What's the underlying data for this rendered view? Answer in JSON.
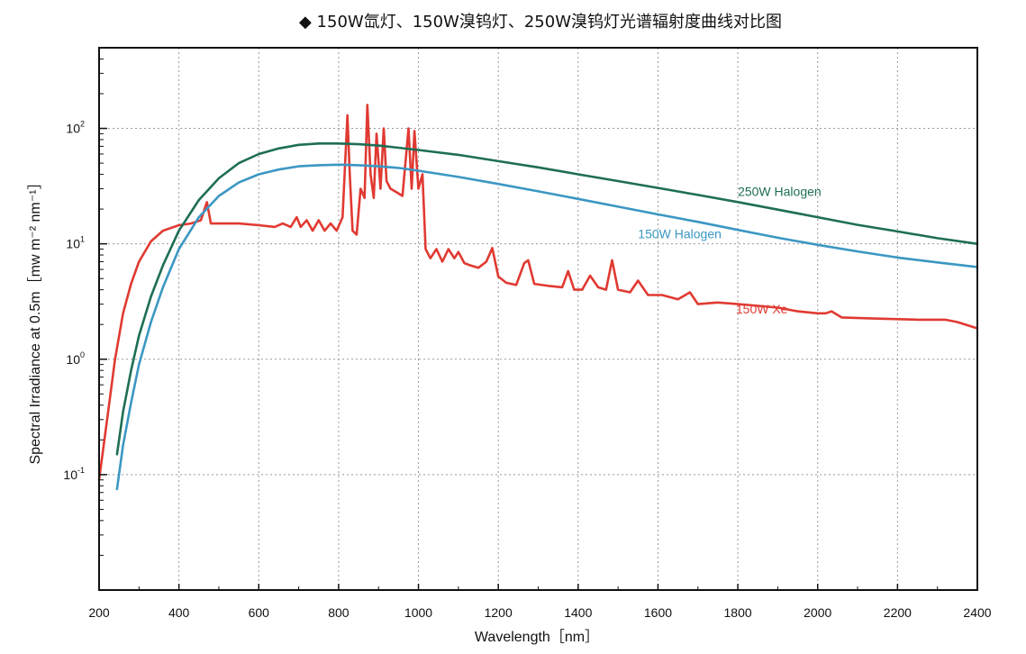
{
  "title": "◆ 150W氙灯、150W溴钨灯、250W溴钨灯光谱辐射度曲线对比图",
  "chart_data": {
    "type": "line",
    "title": "◆ 150W氙灯、150W溴钨灯、250W溴钨灯光谱辐射度曲线对比图",
    "xlabel": "Wavelength［nm］",
    "ylabel": "Spectral Irradiance at 0.5m［mw m⁻² nm⁻¹］",
    "xlim": [
      200,
      2400
    ],
    "ylim": [
      0.01,
      500
    ],
    "yscale": "log",
    "grid": true,
    "x_ticks": [
      "200",
      "400",
      "600",
      "800",
      "1000",
      "1200",
      "1400",
      "1600",
      "1800",
      "2000",
      "2200",
      "2400"
    ],
    "y_ticks": [
      {
        "base": "10",
        "exp": "-1",
        "value": 0.1
      },
      {
        "base": "10",
        "exp": "0",
        "value": 1
      },
      {
        "base": "10",
        "exp": "1",
        "value": 10
      },
      {
        "base": "10",
        "exp": "2",
        "value": 100
      }
    ],
    "series": [
      {
        "name": "250W Halogen",
        "label": "250W Halogen",
        "color": "#1e6e55",
        "label_at": [
          1800,
          26
        ],
        "x": [
          245,
          260,
          280,
          300,
          330,
          360,
          400,
          450,
          500,
          550,
          600,
          650,
          700,
          750,
          800,
          850,
          900,
          950,
          1000,
          1100,
          1200,
          1300,
          1400,
          1500,
          1600,
          1700,
          1800,
          1900,
          2000,
          2100,
          2200,
          2300,
          2400
        ],
        "y": [
          0.15,
          0.35,
          0.8,
          1.6,
          3.5,
          6.5,
          13,
          24,
          37,
          50,
          60,
          67,
          72,
          74,
          74,
          73,
          71,
          68,
          65,
          59,
          52,
          46,
          40,
          35,
          30.5,
          26.5,
          23,
          19.8,
          17,
          14.6,
          12.8,
          11.2,
          10
        ]
      },
      {
        "name": "150W Halogen",
        "label": "150W Halogen",
        "color": "#3b97c3",
        "label_at": [
          1550,
          11.2
        ],
        "x": [
          245,
          260,
          280,
          300,
          330,
          360,
          400,
          450,
          500,
          550,
          600,
          650,
          700,
          750,
          800,
          850,
          900,
          950,
          1000,
          1100,
          1200,
          1300,
          1400,
          1500,
          1600,
          1700,
          1800,
          1900,
          2000,
          2100,
          2200,
          2300,
          2400
        ],
        "y": [
          0.075,
          0.18,
          0.42,
          0.9,
          2.1,
          4.2,
          9,
          17,
          26,
          34,
          40,
          44,
          47,
          48,
          48.5,
          48,
          47,
          45.5,
          43,
          38,
          33,
          28.5,
          24.5,
          21,
          18,
          15.5,
          13.2,
          11.3,
          9.8,
          8.6,
          7.6,
          6.9,
          6.3
        ]
      },
      {
        "name": "150W Xe",
        "label": "150W Xe",
        "color": "#e03a32",
        "label_at": [
          1795,
          2.5
        ],
        "x": [
          200,
          220,
          240,
          260,
          280,
          300,
          330,
          360,
          400,
          430,
          455,
          470,
          480,
          500,
          550,
          600,
          640,
          660,
          680,
          695,
          705,
          720,
          735,
          750,
          765,
          780,
          795,
          810,
          822,
          828,
          835,
          845,
          855,
          865,
          872,
          880,
          888,
          895,
          905,
          913,
          920,
          930,
          945,
          960,
          975,
          983,
          990,
          1000,
          1010,
          1018,
          1030,
          1045,
          1060,
          1075,
          1090,
          1100,
          1115,
          1130,
          1150,
          1170,
          1185,
          1200,
          1220,
          1245,
          1265,
          1275,
          1290,
          1330,
          1360,
          1375,
          1390,
          1410,
          1430,
          1450,
          1470,
          1485,
          1500,
          1530,
          1550,
          1575,
          1610,
          1650,
          1680,
          1700,
          1750,
          1800,
          1850,
          1900,
          1950,
          2000,
          2020,
          2035,
          2060,
          2150,
          2250,
          2320,
          2350,
          2400
        ],
        "y": [
          0.09,
          0.3,
          1.0,
          2.5,
          4.5,
          7.0,
          10.5,
          13,
          14.5,
          15,
          16,
          23,
          15,
          15,
          15,
          14.5,
          14,
          15,
          14,
          17,
          14,
          16,
          13,
          16,
          13,
          15,
          13,
          17,
          130,
          40,
          13,
          12,
          30,
          25,
          160,
          40,
          25,
          90,
          30,
          100,
          35,
          30,
          28,
          26,
          100,
          30,
          95,
          30,
          40,
          9,
          7.5,
          9,
          7,
          9,
          7.5,
          8.5,
          6.8,
          6.5,
          6.2,
          7,
          9.2,
          5.2,
          4.6,
          4.4,
          6.8,
          7.2,
          4.5,
          4.3,
          4.2,
          5.8,
          4.0,
          4.0,
          5.3,
          4.2,
          4.0,
          7.2,
          4.0,
          3.8,
          4.8,
          3.6,
          3.6,
          3.3,
          3.8,
          3.0,
          3.1,
          3.0,
          2.9,
          2.8,
          2.6,
          2.5,
          2.5,
          2.6,
          2.3,
          2.25,
          2.2,
          2.2,
          2.1,
          1.85
        ]
      }
    ]
  }
}
